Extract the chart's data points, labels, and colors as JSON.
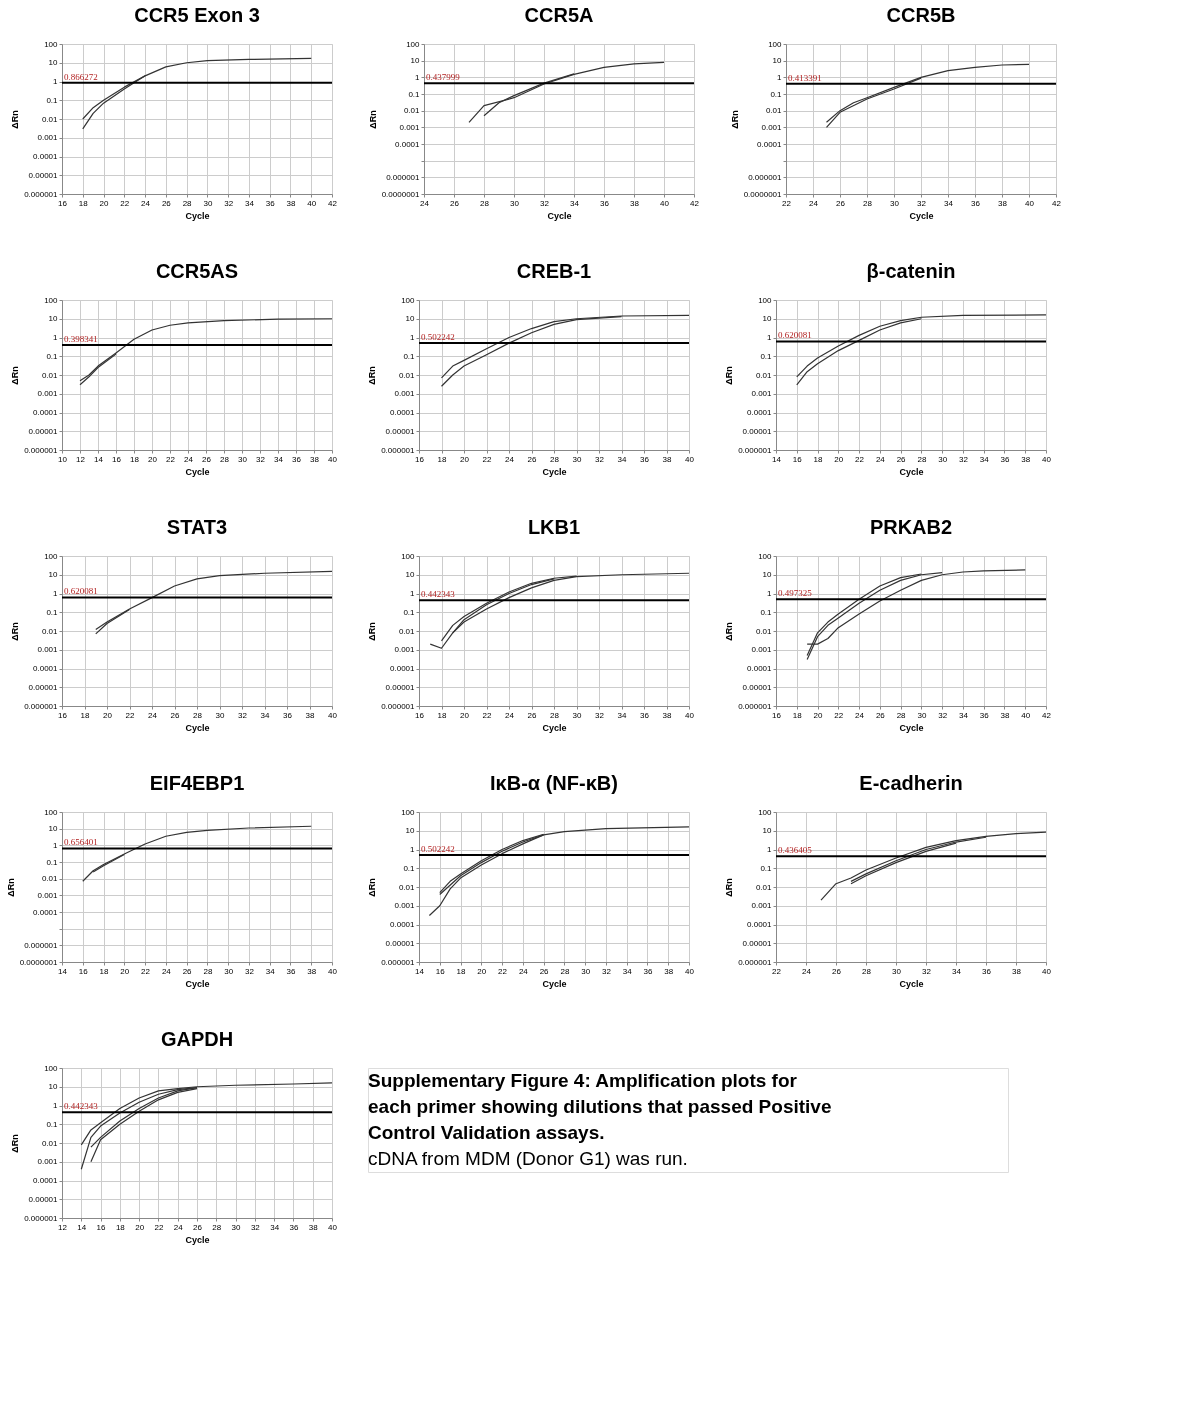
{
  "chart_data": [
    {
      "type": "line",
      "title": "CCR5 Exon 3",
      "xlabel": "Cycle",
      "ylabel": "ΔRn",
      "log": "y",
      "grid": true,
      "xlim": [
        16,
        42
      ],
      "xticks": [
        16,
        18,
        20,
        22,
        24,
        26,
        28,
        30,
        32,
        34,
        36,
        38,
        40,
        42
      ],
      "ylim": [
        1e-06,
        100
      ],
      "yticks": [
        100,
        10,
        1,
        0.1,
        0.01,
        0.001,
        0.0001,
        {
          "value": 1e-05,
          "label": "0.00001"
        },
        {
          "value": 1e-06,
          "label": "0.000001"
        }
      ],
      "series": [
        {
          "color": "#333333",
          "x": [
            18,
            19,
            20,
            22,
            24,
            26,
            28,
            30,
            34,
            40
          ],
          "values": [
            0.01,
            0.04,
            0.1,
            0.5,
            2,
            6,
            10,
            13,
            15,
            17
          ]
        },
        {
          "color": "#333333",
          "x": [
            18,
            19,
            20,
            22,
            24
          ],
          "values": [
            0.003,
            0.02,
            0.07,
            0.4,
            2
          ]
        }
      ],
      "ref_lines": [
        {
          "axis": "y",
          "value": 0.866272,
          "label": "0.866272",
          "color": "#000000"
        }
      ]
    },
    {
      "type": "line",
      "title": "CCR5A",
      "xlabel": "Cycle",
      "ylabel": "ΔRn",
      "log": "y",
      "grid": true,
      "xlim": [
        24,
        42
      ],
      "xticks": [
        24,
        26,
        28,
        30,
        32,
        34,
        36,
        38,
        40,
        42
      ],
      "ylim": [
        1e-07,
        100
      ],
      "yticks": [
        100,
        10,
        1,
        0.1,
        0.01,
        0.001,
        0.0001,
        {
          "value": 1e-05,
          "label": null
        },
        {
          "value": 1e-06,
          "label": "0.000001"
        },
        {
          "value": 1e-07,
          "label": "0.0000001"
        }
      ],
      "series": [
        {
          "color": "#333333",
          "x": [
            27,
            28,
            30,
            32,
            34,
            36,
            38,
            40
          ],
          "values": [
            0.002,
            0.02,
            0.06,
            0.4,
            1.5,
            4,
            6.5,
            8
          ]
        },
        {
          "color": "#333333",
          "x": [
            28,
            29,
            30,
            32,
            34
          ],
          "values": [
            0.005,
            0.03,
            0.08,
            0.45,
            1.6
          ]
        }
      ],
      "ref_lines": [
        {
          "axis": "y",
          "value": 0.437999,
          "label": "0.437999",
          "color": "#000000"
        }
      ]
    },
    {
      "type": "line",
      "title": "CCR5B",
      "xlabel": "Cycle",
      "ylabel": "ΔRn",
      "log": "y",
      "grid": true,
      "xlim": [
        22,
        42
      ],
      "xticks": [
        22,
        24,
        26,
        28,
        30,
        32,
        34,
        36,
        38,
        40,
        42
      ],
      "ylim": [
        1e-07,
        100
      ],
      "yticks": [
        100,
        10,
        1,
        0.1,
        0.01,
        0.001,
        0.0001,
        {
          "value": 1e-05,
          "label": null
        },
        {
          "value": 1e-06,
          "label": "0.000001"
        },
        {
          "value": 1e-07,
          "label": "0.0000001"
        }
      ],
      "series": [
        {
          "color": "#333333",
          "x": [
            25,
            26,
            27,
            28,
            30,
            32,
            34,
            36,
            38,
            40
          ],
          "values": [
            0.002,
            0.01,
            0.03,
            0.06,
            0.25,
            1,
            2.5,
            4,
            5.5,
            6
          ]
        },
        {
          "color": "#333333",
          "x": [
            25,
            26,
            28,
            30,
            32
          ],
          "values": [
            0.001,
            0.008,
            0.05,
            0.2,
            0.9
          ]
        }
      ],
      "ref_lines": [
        {
          "axis": "y",
          "value": 0.413391,
          "label": "0.413391",
          "color": "#000000"
        }
      ]
    },
    {
      "type": "line",
      "title": "CCR5AS",
      "xlabel": "Cycle",
      "ylabel": "ΔRn",
      "log": "y",
      "grid": true,
      "xlim": [
        10,
        40
      ],
      "xticks": [
        10,
        12,
        14,
        16,
        18,
        20,
        22,
        24,
        26,
        28,
        30,
        32,
        34,
        36,
        38,
        40
      ],
      "ylim": [
        1e-06,
        100
      ],
      "yticks": [
        100,
        10,
        1,
        0.1,
        0.01,
        0.001,
        0.0001,
        {
          "value": 1e-05,
          "label": "0.00001"
        },
        {
          "value": 1e-06,
          "label": "0.000001"
        }
      ],
      "series": [
        {
          "color": "#333333",
          "x": [
            12,
            13,
            14,
            16,
            18,
            20,
            22,
            24,
            28,
            34,
            40
          ],
          "values": [
            0.005,
            0.01,
            0.03,
            0.15,
            0.8,
            2.5,
            4.5,
            6,
            8,
            9.5,
            10
          ]
        },
        {
          "color": "#333333",
          "x": [
            12,
            13,
            14,
            16
          ],
          "values": [
            0.003,
            0.008,
            0.025,
            0.13
          ]
        }
      ],
      "ref_lines": [
        {
          "axis": "y",
          "value": 0.398341,
          "label": "0.398341",
          "color": "#000000"
        }
      ]
    },
    {
      "type": "line",
      "title": "CREB-1",
      "xlabel": "Cycle",
      "ylabel": "ΔRn",
      "log": "y",
      "grid": true,
      "xlim": [
        16,
        40
      ],
      "xticks": [
        16,
        18,
        20,
        22,
        24,
        26,
        28,
        30,
        32,
        34,
        36,
        38,
        40
      ],
      "ylim": [
        1e-06,
        100
      ],
      "yticks": [
        100,
        10,
        1,
        0.1,
        0.01,
        0.001,
        0.0001,
        {
          "value": 1e-05,
          "label": "0.00001"
        },
        {
          "value": 1e-06,
          "label": "0.000001"
        }
      ],
      "series": [
        {
          "color": "#333333",
          "x": [
            18,
            19,
            20,
            22,
            24,
            26,
            28,
            30,
            34,
            40
          ],
          "values": [
            0.007,
            0.03,
            0.06,
            0.25,
            1,
            3,
            7,
            10,
            14,
            15
          ]
        },
        {
          "color": "#333333",
          "x": [
            18,
            19,
            20,
            22,
            24,
            26,
            28,
            30,
            34
          ],
          "values": [
            0.0025,
            0.01,
            0.03,
            0.12,
            0.5,
            1.8,
            5,
            9,
            13
          ]
        }
      ],
      "ref_lines": [
        {
          "axis": "y",
          "value": 0.502242,
          "label": "0.502242",
          "color": "#000000"
        }
      ]
    },
    {
      "type": "line",
      "title": "β-catenin",
      "xlabel": "Cycle",
      "ylabel": "ΔRn",
      "log": "y",
      "grid": true,
      "xlim": [
        14,
        40
      ],
      "xticks": [
        14,
        16,
        18,
        20,
        22,
        24,
        26,
        28,
        30,
        32,
        34,
        36,
        38,
        40
      ],
      "ylim": [
        1e-06,
        100
      ],
      "yticks": [
        100,
        10,
        1,
        0.1,
        0.01,
        0.001,
        0.0001,
        {
          "value": 1e-05,
          "label": "0.00001"
        },
        {
          "value": 1e-06,
          "label": "0.000001"
        }
      ],
      "series": [
        {
          "color": "#333333",
          "x": [
            16,
            17,
            18,
            20,
            22,
            24,
            26,
            28,
            32,
            40
          ],
          "values": [
            0.008,
            0.03,
            0.08,
            0.35,
            1.3,
            4,
            8,
            12,
            15,
            16
          ]
        },
        {
          "color": "#333333",
          "x": [
            16,
            17,
            18,
            20,
            22,
            24,
            26,
            28
          ],
          "values": [
            0.003,
            0.015,
            0.04,
            0.2,
            0.7,
            2.5,
            6,
            10
          ]
        }
      ],
      "ref_lines": [
        {
          "axis": "y",
          "value": 0.620081,
          "label": "0.620081",
          "color": "#000000"
        }
      ]
    },
    {
      "type": "line",
      "title": "STAT3",
      "xlabel": "Cycle",
      "ylabel": "ΔRn",
      "log": "y",
      "grid": true,
      "xlim": [
        16,
        40
      ],
      "xticks": [
        16,
        18,
        20,
        22,
        24,
        26,
        28,
        30,
        32,
        34,
        36,
        38,
        40
      ],
      "ylim": [
        1e-06,
        100
      ],
      "yticks": [
        100,
        10,
        1,
        0.1,
        0.01,
        0.001,
        0.0001,
        {
          "value": 1e-05,
          "label": "0.00001"
        },
        {
          "value": 1e-06,
          "label": "0.000001"
        }
      ],
      "series": [
        {
          "color": "#333333",
          "x": [
            19,
            20,
            22,
            24,
            26,
            28,
            30,
            34,
            40
          ],
          "values": [
            0.012,
            0.03,
            0.15,
            0.6,
            2.5,
            6,
            9,
            12,
            15
          ]
        },
        {
          "color": "#333333",
          "x": [
            19,
            20,
            22
          ],
          "values": [
            0.007,
            0.025,
            0.14
          ]
        }
      ],
      "ref_lines": [
        {
          "axis": "y",
          "value": 0.620081,
          "label": "0.620081",
          "color": "#000000"
        }
      ]
    },
    {
      "type": "line",
      "title": "LKB1",
      "xlabel": "Cycle",
      "ylabel": "ΔRn",
      "log": "y",
      "grid": true,
      "xlim": [
        16,
        40
      ],
      "xticks": [
        16,
        18,
        20,
        22,
        24,
        26,
        28,
        30,
        32,
        34,
        36,
        38,
        40
      ],
      "ylim": [
        1e-06,
        100
      ],
      "yticks": [
        100,
        10,
        1,
        0.1,
        0.01,
        0.001,
        0.0001,
        {
          "value": 1e-05,
          "label": "0.00001"
        },
        {
          "value": 1e-06,
          "label": "0.000001"
        }
      ],
      "series": [
        {
          "color": "#333333",
          "x": [
            17,
            18,
            19,
            20,
            22,
            24,
            26,
            28,
            30,
            34,
            40
          ],
          "values": [
            0.002,
            0.0012,
            0.008,
            0.03,
            0.15,
            0.6,
            2,
            5,
            8,
            10,
            12
          ]
        },
        {
          "color": "#333333",
          "x": [
            18,
            19,
            20,
            22,
            24,
            26,
            28,
            30
          ],
          "values": [
            0.003,
            0.02,
            0.06,
            0.3,
            1.2,
            3.5,
            6.5,
            8.5
          ]
        },
        {
          "color": "#333333",
          "x": [
            19,
            20,
            22,
            24,
            26,
            28
          ],
          "values": [
            0.008,
            0.04,
            0.25,
            1,
            3,
            6
          ]
        }
      ],
      "ref_lines": [
        {
          "axis": "y",
          "value": 0.442343,
          "label": "0.442343",
          "color": "#000000"
        }
      ]
    },
    {
      "type": "line",
      "title": "PRKAB2",
      "xlabel": "Cycle",
      "ylabel": "ΔRn",
      "log": "y",
      "grid": true,
      "xlim": [
        16,
        42
      ],
      "xticks": [
        16,
        18,
        20,
        22,
        24,
        26,
        28,
        30,
        32,
        34,
        36,
        38,
        40,
        42
      ],
      "ylim": [
        1e-06,
        100
      ],
      "yticks": [
        100,
        10,
        1,
        0.1,
        0.01,
        0.001,
        0.0001,
        {
          "value": 1e-05,
          "label": "0.00001"
        },
        {
          "value": 1e-06,
          "label": "0.000001"
        }
      ],
      "series": [
        {
          "color": "#333333",
          "x": [
            19,
            20,
            21,
            22,
            24,
            26,
            28,
            30,
            32,
            34,
            36,
            40
          ],
          "values": [
            0.002,
            0.002,
            0.004,
            0.015,
            0.08,
            0.4,
            1.5,
            5,
            10,
            14,
            16,
            18
          ]
        },
        {
          "color": "#333333",
          "x": [
            19,
            20,
            21,
            22,
            24,
            26,
            28,
            30,
            32
          ],
          "values": [
            0.0003,
            0.005,
            0.02,
            0.05,
            0.3,
            1.5,
            5,
            10,
            13
          ]
        },
        {
          "color": "#333333",
          "x": [
            19,
            20,
            21,
            22,
            24,
            26,
            28,
            30
          ],
          "values": [
            0.0005,
            0.008,
            0.03,
            0.08,
            0.5,
            2.5,
            7,
            11
          ]
        }
      ],
      "ref_lines": [
        {
          "axis": "y",
          "value": 0.497325,
          "label": "0.497325",
          "color": "#000000"
        }
      ]
    },
    {
      "type": "line",
      "title": "EIF4EBP1",
      "xlabel": "Cycle",
      "ylabel": "ΔRn",
      "log": "y",
      "grid": true,
      "xlim": [
        14,
        40
      ],
      "xticks": [
        14,
        16,
        18,
        20,
        22,
        24,
        26,
        28,
        30,
        32,
        34,
        36,
        38,
        40
      ],
      "ylim": [
        1e-07,
        100
      ],
      "yticks": [
        100,
        10,
        1,
        0.1,
        0.01,
        0.001,
        0.0001,
        {
          "value": 1e-05,
          "label": null
        },
        {
          "value": 1e-06,
          "label": "0.000001"
        },
        {
          "value": 1e-07,
          "label": "0.0000001"
        }
      ],
      "series": [
        {
          "color": "#333333",
          "x": [
            16,
            17,
            18,
            20,
            22,
            24,
            26,
            28,
            32,
            38
          ],
          "values": [
            0.007,
            0.03,
            0.07,
            0.3,
            1.2,
            3.5,
            6,
            8,
            11,
            14
          ]
        },
        {
          "color": "#333333",
          "x": [
            17,
            18,
            20
          ],
          "values": [
            0.025,
            0.06,
            0.28
          ]
        }
      ],
      "ref_lines": [
        {
          "axis": "y",
          "value": 0.656401,
          "label": "0.656401",
          "color": "#000000"
        }
      ]
    },
    {
      "type": "line",
      "title": "IκB-α (NF-κB)",
      "xlabel": "Cycle",
      "ylabel": "ΔRn",
      "log": "y",
      "grid": true,
      "xlim": [
        14,
        40
      ],
      "xticks": [
        14,
        16,
        18,
        20,
        22,
        24,
        26,
        28,
        30,
        32,
        34,
        36,
        38,
        40
      ],
      "ylim": [
        1e-06,
        100
      ],
      "yticks": [
        100,
        10,
        1,
        0.1,
        0.01,
        0.001,
        0.0001,
        {
          "value": 1e-05,
          "label": "0.00001"
        },
        {
          "value": 1e-06,
          "label": "0.000001"
        }
      ],
      "series": [
        {
          "color": "#333333",
          "x": [
            15,
            16,
            17,
            18,
            20,
            22,
            24,
            26,
            28,
            32,
            40
          ],
          "values": [
            0.0003,
            0.001,
            0.008,
            0.03,
            0.15,
            0.6,
            2,
            6,
            9,
            13,
            16
          ]
        },
        {
          "color": "#333333",
          "x": [
            16,
            17,
            18,
            20,
            22,
            24,
            26
          ],
          "values": [
            0.005,
            0.02,
            0.05,
            0.25,
            1,
            3,
            6.5
          ]
        },
        {
          "color": "#333333",
          "x": [
            16,
            18,
            20,
            22,
            24,
            26
          ],
          "values": [
            0.004,
            0.04,
            0.2,
            0.8,
            2.5,
            6
          ]
        }
      ],
      "ref_lines": [
        {
          "axis": "y",
          "value": 0.502242,
          "label": "0.502242",
          "color": "#000000"
        }
      ]
    },
    {
      "type": "line",
      "title": "E-cadherin",
      "xlabel": "Cycle",
      "ylabel": "ΔRn",
      "log": "y",
      "grid": true,
      "xlim": [
        22,
        40
      ],
      "xticks": [
        22,
        24,
        26,
        28,
        30,
        32,
        34,
        36,
        38,
        40
      ],
      "ylim": [
        1e-06,
        100
      ],
      "yticks": [
        100,
        10,
        1,
        0.1,
        0.01,
        0.001,
        0.0001,
        {
          "value": 1e-05,
          "label": "0.00001"
        },
        {
          "value": 1e-06,
          "label": "0.000001"
        }
      ],
      "series": [
        {
          "color": "#333333",
          "x": [
            25,
            26,
            27,
            28,
            30,
            32,
            34,
            36,
            38,
            40
          ],
          "values": [
            0.002,
            0.015,
            0.03,
            0.08,
            0.35,
            1.3,
            3,
            5,
            7,
            8.5
          ]
        },
        {
          "color": "#333333",
          "x": [
            27,
            28,
            30,
            32,
            34,
            36
          ],
          "values": [
            0.02,
            0.05,
            0.25,
            1,
            2.5,
            4.5
          ]
        },
        {
          "color": "#333333",
          "x": [
            27,
            28,
            30,
            32,
            34
          ],
          "values": [
            0.015,
            0.04,
            0.2,
            0.8,
            2.2
          ]
        }
      ],
      "ref_lines": [
        {
          "axis": "y",
          "value": 0.436405,
          "label": "0.436405",
          "color": "#000000"
        }
      ]
    },
    {
      "type": "line",
      "title": "GAPDH",
      "xlabel": "Cycle",
      "ylabel": "ΔRn",
      "log": "y",
      "grid": true,
      "xlim": [
        12,
        40
      ],
      "xticks": [
        12,
        14,
        16,
        18,
        20,
        22,
        24,
        26,
        28,
        30,
        32,
        34,
        36,
        38,
        40
      ],
      "ylim": [
        1e-06,
        100
      ],
      "yticks": [
        100,
        10,
        1,
        0.1,
        0.01,
        0.001,
        0.0001,
        {
          "value": 1e-05,
          "label": "0.00001"
        },
        {
          "value": 1e-06,
          "label": "0.000001"
        }
      ],
      "series": [
        {
          "color": "#333333",
          "x": [
            14,
            15,
            16,
            18,
            20,
            22,
            24,
            26,
            30,
            36,
            40
          ],
          "values": [
            0.008,
            0.05,
            0.12,
            0.7,
            2.5,
            6,
            8,
            10,
            12,
            14,
            16
          ]
        },
        {
          "color": "#333333",
          "x": [
            14,
            15,
            16,
            18,
            20,
            22,
            24,
            26
          ],
          "values": [
            0.0004,
            0.02,
            0.08,
            0.4,
            1.5,
            4,
            7,
            9
          ]
        },
        {
          "color": "#333333",
          "x": [
            15,
            16,
            18,
            20,
            22,
            24,
            26
          ],
          "values": [
            0.006,
            0.02,
            0.15,
            0.7,
            2.5,
            6,
            9
          ]
        },
        {
          "color": "#333333",
          "x": [
            15,
            16,
            18,
            20,
            22,
            24,
            26
          ],
          "values": [
            0.001,
            0.015,
            0.1,
            0.5,
            2,
            5,
            8
          ]
        }
      ],
      "ref_lines": [
        {
          "axis": "y",
          "value": 0.442343,
          "label": "0.442343",
          "color": "#000000"
        }
      ],
      "annotations": [
        "Supplementary Figure 4: Amplification plots for each primer showing dilutions that passed Positive Control Validation assays.",
        "cDNA from MDM (Donor G1) was run."
      ]
    }
  ]
}
